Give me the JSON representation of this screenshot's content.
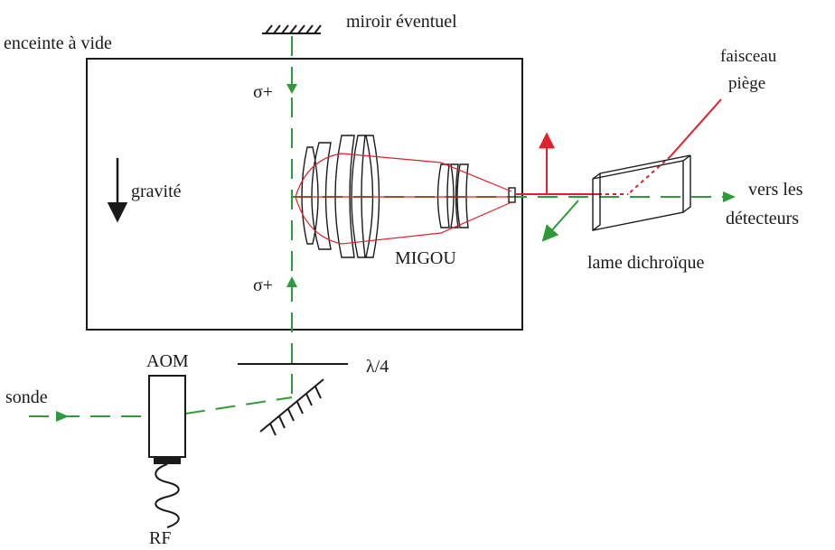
{
  "labels": {
    "enceinte": "enceinte à vide",
    "miroir": "miroir éventuel",
    "faisceau_line1": "faisceau",
    "faisceau_line2": "piège",
    "sigma_top": "σ+",
    "sigma_bottom": "σ+",
    "gravite": "gravité",
    "migou": "MIGOU",
    "vers_line1": "vers les",
    "vers_line2": "détecteurs",
    "lame": "lame dichroïque",
    "aom": "AOM",
    "lambda": "λ/4",
    "sonde": "sonde",
    "rf": "RF"
  },
  "colors": {
    "probe_beam": "#2f9a3a",
    "trap_beam": "#e0202a",
    "outline": "#1a1a1a"
  }
}
